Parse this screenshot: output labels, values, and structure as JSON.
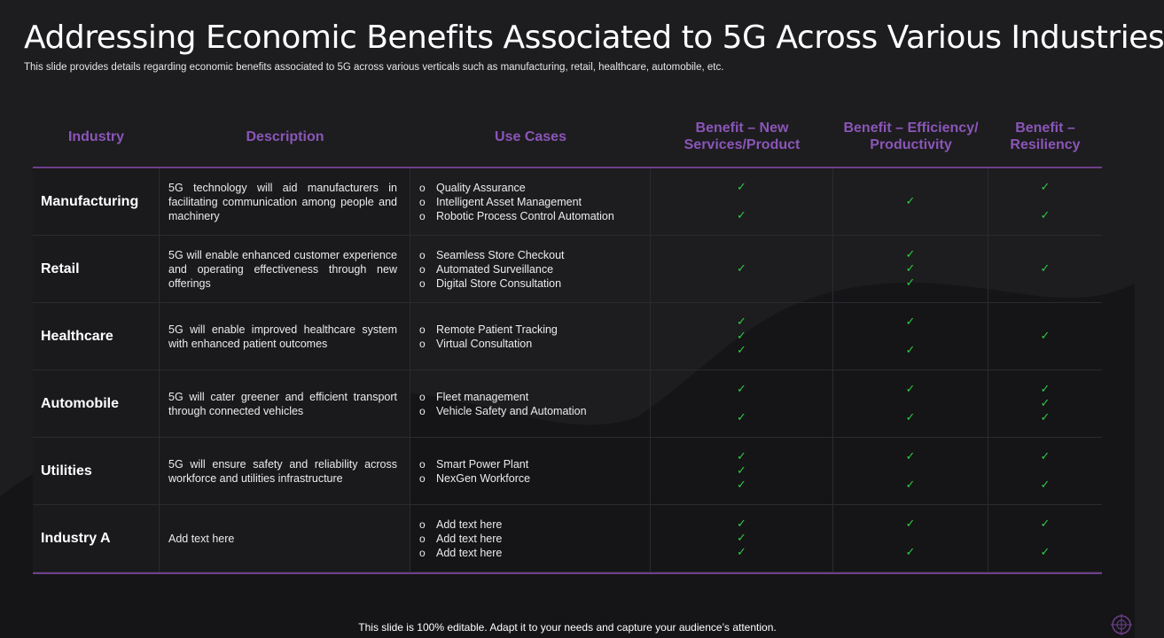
{
  "title": "Addressing Economic Benefits Associated to 5G Across Various Industries",
  "subtitle": "This slide provides details regarding economic benefits associated to 5G across various verticals such as manufacturing, retail, healthcare, automobile, etc.",
  "headers": {
    "industry": "Industry",
    "description": "Description",
    "use_cases": "Use Cases",
    "benefit_new_1": "Benefit – New",
    "benefit_new_2": "Services/Product",
    "benefit_eff_1": "Benefit – Efficiency/",
    "benefit_eff_2": "Productivity",
    "benefit_res_1": "Benefit –",
    "benefit_res_2": "Resiliency"
  },
  "rows": [
    {
      "industry": "Manufacturing",
      "description": "5G technology will aid manufacturers in facilitating communication among people and machinery",
      "use_cases": [
        "Quality Assurance",
        "Intelligent Asset Management",
        "Robotic Process Control Automation"
      ]
    },
    {
      "industry": "Retail",
      "description": "5G will enable enhanced customer experience and operating effectiveness through new offerings",
      "use_cases": [
        "Seamless Store Checkout",
        "Automated Surveillance",
        "Digital Store Consultation"
      ]
    },
    {
      "industry": "Healthcare",
      "description": "5G will enable improved healthcare system with enhanced patient outcomes",
      "use_cases": [
        "Remote Patient Tracking",
        "Virtual Consultation"
      ]
    },
    {
      "industry": "Automobile",
      "description": "5G will cater greener and efficient transport through connected vehicles",
      "use_cases": [
        "Fleet management",
        "Vehicle Safety and Automation"
      ]
    },
    {
      "industry": "Utilities",
      "description": "5G will ensure safety and reliability across workforce and utilities infrastructure",
      "use_cases": [
        "Smart Power Plant",
        "NexGen Workforce"
      ]
    },
    {
      "industry": "Industry A",
      "description": "Add text here",
      "use_cases": [
        "Add text here",
        "Add text here",
        "Add text here"
      ]
    }
  ],
  "bullet_char": "o",
  "tick_char": "✓",
  "footer": "This slide is 100% editable. Adapt it to your needs and capture your audience’s attention.",
  "colors": {
    "background": "#1d1c1f",
    "header_text": "#8a56b8",
    "divider": "#6d3f8c",
    "tick": "#2ecc40"
  }
}
